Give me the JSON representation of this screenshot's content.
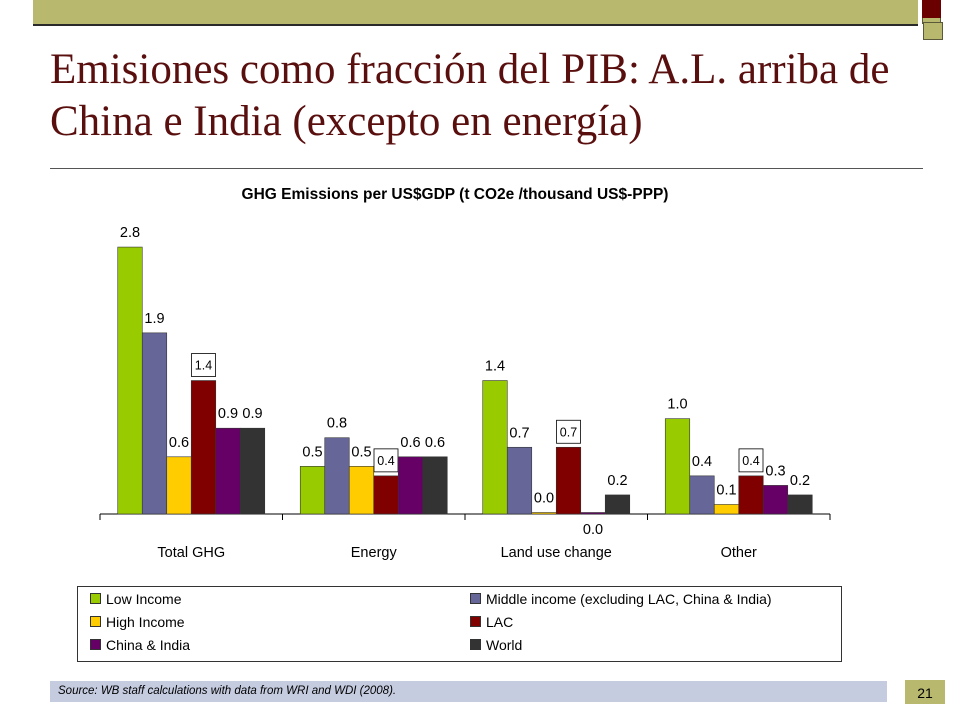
{
  "slide": {
    "title": "Emisiones como fracción del PIB: A.L. arriba de China e India (excepto en energía)",
    "source": "Source: WB staff calculations with data from WRI and WDI (2008).",
    "page_number": "21"
  },
  "colors": {
    "Low Income": "#99cc00",
    "Middle income (excluding LAC, China & India)": "#666699",
    "High Income": "#ffcc00",
    "LAC": "#800000",
    "China & India": "#660066",
    "World": "#333333"
  },
  "chart_data": {
    "type": "bar",
    "title": "GHG Emissions per US$GDP (t CO2e /thousand US$-PPP)",
    "categories": [
      "Total GHG",
      "Energy",
      "Land use change",
      "Other"
    ],
    "ylim": [
      0,
      3.0
    ],
    "grid": false,
    "legend": "bottom",
    "series": [
      {
        "name": "Low Income",
        "values": [
          2.8,
          0.5,
          1.4,
          1.0
        ],
        "labels": [
          "2.8",
          "0.5",
          "1.4",
          "1.0"
        ]
      },
      {
        "name": "Middle income (excluding LAC, China & India)",
        "values": [
          1.9,
          0.8,
          0.7,
          0.4
        ],
        "labels": [
          "1.9",
          "0.8",
          "0.7",
          "0.4"
        ]
      },
      {
        "name": "High Income",
        "values": [
          0.6,
          0.5,
          0.0,
          0.1
        ],
        "labels": [
          "0.6",
          "0.5",
          "0.0",
          "0.1"
        ]
      },
      {
        "name": "LAC",
        "values": [
          1.4,
          0.4,
          0.7,
          0.4
        ],
        "labels": [
          "1.4",
          "0.4",
          "0.7",
          "0.4"
        ],
        "boxed_labels": true
      },
      {
        "name": "China & India",
        "values": [
          0.9,
          0.6,
          0.0,
          0.3
        ],
        "labels": [
          "0.9",
          "0.6",
          "0.0",
          "0.3"
        ]
      },
      {
        "name": "World",
        "values": [
          0.9,
          0.6,
          0.2,
          0.2
        ],
        "labels": [
          "0.9",
          "0.6",
          "0.2",
          "0.2"
        ]
      }
    ]
  }
}
